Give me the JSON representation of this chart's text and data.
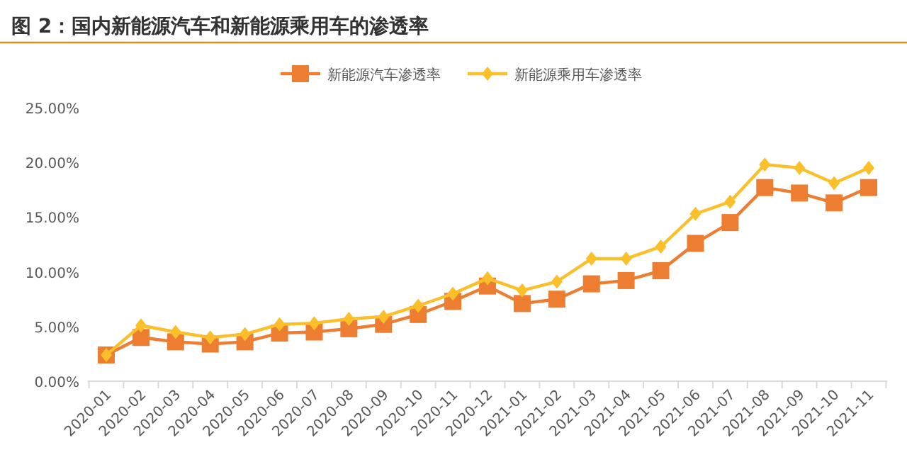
{
  "chart_data": {
    "type": "line",
    "title": "图 2：国内新能源汽车和新能源乘用车的渗透率",
    "categories": [
      "2020-01",
      "2020-02",
      "2020-03",
      "2020-04",
      "2020-05",
      "2020-06",
      "2020-07",
      "2020-08",
      "2020-09",
      "2020-10",
      "2020-11",
      "2020-12",
      "2021-01",
      "2021-02",
      "2021-03",
      "2021-04",
      "2021-05",
      "2021-06",
      "2021-07",
      "2021-08",
      "2021-09",
      "2021-10",
      "2021-11"
    ],
    "series": [
      {
        "name": "新能源汽车渗透率",
        "color": "#ed7d31",
        "marker": "square",
        "values": [
          2.4,
          4.0,
          3.6,
          3.4,
          3.6,
          4.4,
          4.5,
          4.8,
          5.2,
          6.1,
          7.3,
          8.7,
          7.1,
          7.5,
          8.9,
          9.2,
          10.1,
          12.6,
          14.5,
          17.7,
          17.2,
          16.3,
          17.7
        ]
      },
      {
        "name": "新能源乘用车渗透率",
        "color": "#fbbf2a",
        "marker": "diamond",
        "values": [
          2.4,
          5.1,
          4.5,
          4.0,
          4.3,
          5.2,
          5.3,
          5.7,
          5.9,
          6.9,
          8.0,
          9.4,
          8.3,
          9.1,
          11.2,
          11.2,
          12.3,
          15.3,
          16.4,
          19.8,
          19.5,
          18.1,
          19.5
        ]
      }
    ],
    "ylim": [
      0,
      25
    ],
    "yticks": [
      {
        "value": 0,
        "label": "0.00%"
      },
      {
        "value": 5,
        "label": "5.00%"
      },
      {
        "value": 10,
        "label": "10.00%"
      },
      {
        "value": 15,
        "label": "15.00%"
      },
      {
        "value": 20,
        "label": "20.00%"
      },
      {
        "value": 25,
        "label": "25.00%"
      }
    ],
    "grid": false,
    "legend": "top",
    "line_style": "solid"
  }
}
